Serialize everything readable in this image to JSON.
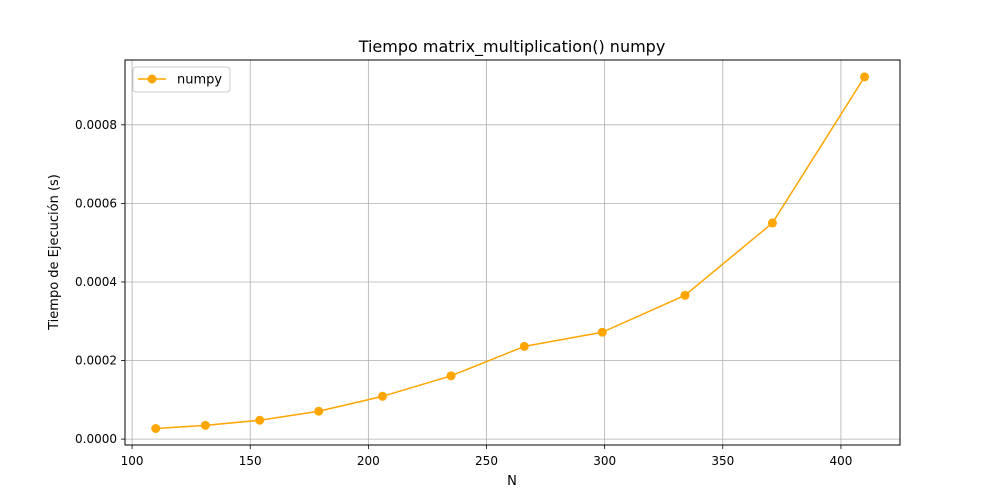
{
  "chart_data": {
    "type": "line",
    "title": "Tiempo matrix_multiplication() numpy",
    "xlabel": "N",
    "ylabel": "Tiempo de Ejecución (s)",
    "xlim": [
      97,
      425
    ],
    "ylim": [
      -1.5e-05,
      0.000965
    ],
    "x_ticks": [
      100,
      150,
      200,
      250,
      300,
      350,
      400
    ],
    "x_tick_labels": [
      "100",
      "150",
      "200",
      "250",
      "300",
      "350",
      "400"
    ],
    "y_ticks": [
      0,
      0.0002,
      0.0004,
      0.0006,
      0.0008
    ],
    "y_tick_labels": [
      "0.0000",
      "0.0002",
      "0.0004",
      "0.0006",
      "0.0008"
    ],
    "grid": true,
    "legend_position": "top-left",
    "series": [
      {
        "name": "numpy",
        "color": "#ffa500",
        "marker": "circle",
        "x": [
          110,
          131,
          154,
          179,
          206,
          235,
          266,
          299,
          334,
          371,
          410
        ],
        "y": [
          2.7e-05,
          3.5e-05,
          4.8e-05,
          7.1e-05,
          0.000109,
          0.000161,
          0.000236,
          0.000272,
          0.000366,
          0.00055,
          0.000922
        ]
      }
    ]
  }
}
